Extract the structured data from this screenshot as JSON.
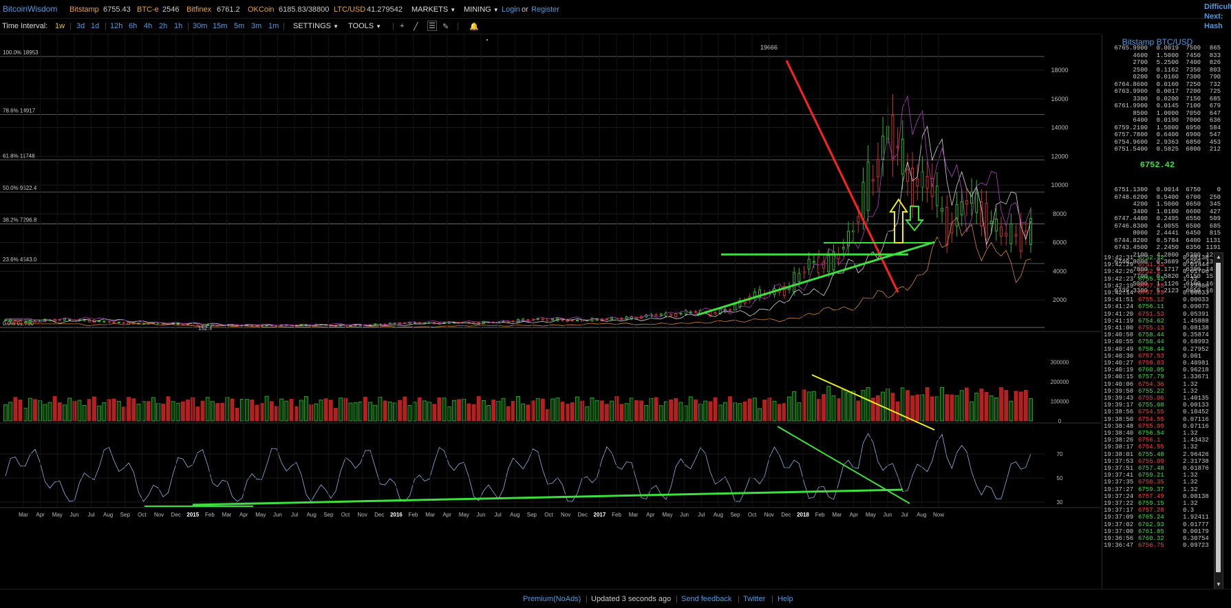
{
  "header": {
    "brand": "BitcoinWisdom",
    "exchanges": [
      {
        "name": "Bitstamp",
        "price": "6755.43"
      },
      {
        "name": "BTC-e",
        "price": "2546"
      },
      {
        "name": "Bitfinex",
        "price": "6761.2"
      },
      {
        "name": "OKCoin",
        "price": "6185.83/38800"
      },
      {
        "name": "LTC/USD",
        "price": "41.279542"
      }
    ],
    "markets_label": "MARKETS",
    "mining_label": "MINING",
    "login_label": "Login",
    "or_label": "or",
    "register_label": "Register",
    "difficulty_lines": [
      "Difficulty",
      "Next:",
      "Hash Rate"
    ]
  },
  "toolbar": {
    "interval_label": "Time Interval:",
    "intervals": [
      "1w",
      "3d",
      "1d",
      "12h",
      "6h",
      "4h",
      "2h",
      "1h",
      "30m",
      "15m",
      "5m",
      "3m",
      "1m"
    ],
    "active_interval": "1w",
    "settings_label": "SETTINGS",
    "tools_label": "TOOLS"
  },
  "chart_data": {
    "type": "candlestick",
    "exchange_pair": "Bitstamp BTC/USD",
    "interval": "1w",
    "price_axis_ticks": [
      2000,
      4000,
      6000,
      8000,
      10000,
      12000,
      14000,
      16000,
      18000
    ],
    "high_label": "19666",
    "low_label": "152.4",
    "fib_levels": [
      {
        "label": "100.0% 18953",
        "value": 18953
      },
      {
        "label": "78.6% 14917",
        "value": 14917
      },
      {
        "label": "61.8% 11748",
        "value": 11748
      },
      {
        "label": "50.0% 9522.4",
        "value": 9522.4
      },
      {
        "label": "38.2% 7296.8",
        "value": 7296.8
      },
      {
        "label": "23.6% 4543.0",
        "value": 4543
      },
      {
        "label": "0.0% 91.790",
        "value": 91.79
      }
    ],
    "volume_axis_ticks": [
      "300000",
      "200000",
      "100000",
      "0"
    ],
    "rsi_axis_ticks": [
      "70",
      "50",
      "30"
    ],
    "time_axis_labels": [
      "Mar",
      "Apr",
      "May",
      "Jun",
      "Jul",
      "Aug",
      "Sep",
      "Oct",
      "Nov",
      "Dec",
      "2015",
      "Feb",
      "Mar",
      "Apr",
      "May",
      "Jun",
      "Jul",
      "Aug",
      "Sep",
      "Oct",
      "Nov",
      "Dec",
      "2016",
      "Feb",
      "Mar",
      "Apr",
      "May",
      "Jun",
      "Jul",
      "Aug",
      "Sep",
      "Oct",
      "Nov",
      "Dec",
      "2017",
      "Feb",
      "Mar",
      "Apr",
      "May",
      "Jun",
      "Jul",
      "Aug",
      "Sep",
      "Oct",
      "Nov",
      "Dec",
      "2018",
      "Feb",
      "Mar",
      "Apr",
      "May",
      "Jun",
      "Jul",
      "Aug",
      "Now"
    ],
    "price_series": [
      [
        "2014-03",
        620
      ],
      [
        "2014-04",
        450
      ],
      [
        "2014-05",
        560
      ],
      [
        "2014-06",
        630
      ],
      [
        "2014-07",
        600
      ],
      [
        "2014-08",
        500
      ],
      [
        "2014-09",
        420
      ],
      [
        "2014-10",
        340
      ],
      [
        "2014-11",
        370
      ],
      [
        "2014-12",
        320
      ],
      [
        "2015-01",
        220
      ],
      [
        "2015-02",
        250
      ],
      [
        "2015-03",
        260
      ],
      [
        "2015-04",
        230
      ],
      [
        "2015-05",
        235
      ],
      [
        "2015-06",
        250
      ],
      [
        "2015-07",
        285
      ],
      [
        "2015-08",
        230
      ],
      [
        "2015-09",
        235
      ],
      [
        "2015-10",
        310
      ],
      [
        "2015-11",
        380
      ],
      [
        "2015-12",
        430
      ],
      [
        "2016-01",
        380
      ],
      [
        "2016-02",
        430
      ],
      [
        "2016-03",
        415
      ],
      [
        "2016-04",
        450
      ],
      [
        "2016-05",
        530
      ],
      [
        "2016-06",
        680
      ],
      [
        "2016-07",
        620
      ],
      [
        "2016-08",
        575
      ],
      [
        "2016-09",
        610
      ],
      [
        "2016-10",
        700
      ],
      [
        "2016-11",
        740
      ],
      [
        "2016-12",
        960
      ],
      [
        "2017-01",
        970
      ],
      [
        "2017-02",
        1190
      ],
      [
        "2017-03",
        1080
      ],
      [
        "2017-04",
        1350
      ],
      [
        "2017-05",
        2300
      ],
      [
        "2017-06",
        2500
      ],
      [
        "2017-07",
        2870
      ],
      [
        "2017-08",
        4700
      ],
      [
        "2017-09",
        4340
      ],
      [
        "2017-10",
        6470
      ],
      [
        "2017-11",
        10000
      ],
      [
        "2017-12",
        14000
      ],
      [
        "2018-01",
        10200
      ],
      [
        "2018-02",
        10300
      ],
      [
        "2018-03",
        6900
      ],
      [
        "2018-04",
        9200
      ],
      [
        "2018-05",
        7500
      ],
      [
        "2018-06",
        6400
      ],
      [
        "2018-07",
        6752
      ]
    ],
    "indicators": [
      "Volume",
      "RSI"
    ]
  },
  "orderbook": {
    "title": "Bitstamp BTC/USD",
    "asks": [
      [
        "6765.9900",
        "0.0019",
        "7500",
        "865"
      ],
      [
        "4600",
        "1.5000",
        "7450",
        "833"
      ],
      [
        "2700",
        "5.2500",
        "7400",
        "826"
      ],
      [
        "2500",
        "0.1162",
        "7350",
        "803"
      ],
      [
        "0200",
        "0.0160",
        "7300",
        "790"
      ],
      [
        "6764.8600",
        "0.0160",
        "7250",
        "732"
      ],
      [
        "6763.9900",
        "0.0017",
        "7200",
        "725"
      ],
      [
        "3300",
        "0.0200",
        "7150",
        "685"
      ],
      [
        "6761.9900",
        "0.0145",
        "7100",
        "679"
      ],
      [
        "8500",
        "1.0000",
        "7050",
        "647"
      ],
      [
        "6400",
        "0.0190",
        "7000",
        "636"
      ],
      [
        "6759.2100",
        "1.5000",
        "6950",
        "584"
      ],
      [
        "6757.7800",
        "0.6400",
        "6900",
        "547"
      ],
      [
        "6754.9600",
        "2.9363",
        "6850",
        "453"
      ],
      [
        "6751.5400",
        "0.5825",
        "6800",
        "212"
      ]
    ],
    "last_price": "6752.42",
    "bids": [
      [
        "6751.1300",
        "0.0014",
        "6750",
        "0"
      ],
      [
        "6748.6200",
        "0.5400",
        "6700",
        "250"
      ],
      [
        "4200",
        "1.5000",
        "6650",
        "345"
      ],
      [
        "3400",
        "1.0100",
        "6600",
        "427"
      ],
      [
        "6747.4400",
        "0.2495",
        "6550",
        "509"
      ],
      [
        "6746.8300",
        "4.0055",
        "6500",
        "685"
      ],
      [
        "8000",
        "2.4441",
        "6450",
        "815"
      ],
      [
        "6744.8200",
        "0.5784",
        "6400",
        "1131"
      ],
      [
        "6743.4500",
        "2.2450",
        "6350",
        "1191"
      ],
      [
        "2100",
        "4.2800",
        "6300",
        "1296"
      ],
      [
        "6740.8000",
        "0.3689",
        "6250",
        "1377"
      ],
      [
        "7800",
        "0.1717",
        "6200",
        "1433"
      ],
      [
        "7700",
        "0.5820",
        "6150",
        "1520"
      ],
      [
        "5000",
        "1.1126",
        "6100",
        "1610"
      ],
      [
        "6739.3300",
        "5.2123",
        "6050",
        "1695"
      ]
    ]
  },
  "trades": [
    [
      "19:42:31",
      "6752.42",
      "0.08138",
      "up"
    ],
    [
      "19:42:29",
      "6751.53",
      "0.01444",
      "down"
    ],
    [
      "19:42:26",
      "6752.1",
      "0.01706",
      "down"
    ],
    [
      "19:42:23",
      "6755.43",
      "1.32",
      "up"
    ],
    [
      "19:42:19",
      "6757.23",
      "1.23986",
      "down"
    ],
    [
      "19:42:14",
      "6757.23",
      "0.00033",
      "down"
    ],
    [
      "19:41:51",
      "6755.12",
      "0.00033",
      "down"
    ],
    [
      "19:41:24",
      "6756.11",
      "0.09073",
      "up"
    ],
    [
      "19:41:20",
      "6751.53",
      "0.05391",
      "down"
    ],
    [
      "19:41:19",
      "6754.62",
      "1.45888",
      "up"
    ],
    [
      "19:41:00",
      "6755.13",
      "0.08138",
      "down"
    ],
    [
      "19:40:58",
      "6758.44",
      "0.35874",
      "up"
    ],
    [
      "19:40:55",
      "6758.44",
      "0.68993",
      "up"
    ],
    [
      "19:40:49",
      "6758.44",
      "0.27952",
      "up"
    ],
    [
      "19:40:30",
      "6757.53",
      "0.001",
      "down"
    ],
    [
      "19:40:27",
      "6758.83",
      "0.40981",
      "down"
    ],
    [
      "19:40:19",
      "6760.05",
      "0.96218",
      "up"
    ],
    [
      "19:40:15",
      "6757.79",
      "1.33671",
      "up"
    ],
    [
      "19:40:06",
      "6754.36",
      "1.32",
      "down"
    ],
    [
      "19:39:58",
      "6755.22",
      "1.32",
      "up"
    ],
    [
      "19:39:43",
      "6755.06",
      "1.40135",
      "down"
    ],
    [
      "19:39:17",
      "6755.08",
      "0.00133",
      "up"
    ],
    [
      "19:38:56",
      "6754.55",
      "0.10452",
      "down"
    ],
    [
      "19:38:50",
      "6754.55",
      "0.07116",
      "down"
    ],
    [
      "19:38:48",
      "6755.09",
      "0.07116",
      "down"
    ],
    [
      "19:38:40",
      "6756.54",
      "1.32",
      "up"
    ],
    [
      "19:38:26",
      "6756.1",
      "1.43432",
      "down"
    ],
    [
      "19:38:17",
      "6754.55",
      "1.32",
      "down"
    ],
    [
      "19:38:01",
      "6755.48",
      "2.96426",
      "up"
    ],
    [
      "19:37:53",
      "6755.09",
      "2.31738",
      "down"
    ],
    [
      "19:37:51",
      "6757.48",
      "0.01876",
      "up"
    ],
    [
      "19:37:41",
      "6759.21",
      "1.32",
      "up"
    ],
    [
      "19:37:35",
      "6758.35",
      "1.32",
      "down"
    ],
    [
      "19:37:27",
      "6759.37",
      "1.32",
      "up"
    ],
    [
      "19:37:24",
      "6757.49",
      "0.00138",
      "down"
    ],
    [
      "19:37:22",
      "6759.15",
      "1.32",
      "up"
    ],
    [
      "19:37:17",
      "6757.28",
      "0.3",
      "down"
    ],
    [
      "19:37:09",
      "6765.24",
      "1.92411",
      "up"
    ],
    [
      "19:37:02",
      "6762.93",
      "0.01777",
      "up"
    ],
    [
      "19:37:00",
      "6761.85",
      "0.00179",
      "up"
    ],
    [
      "19:36:56",
      "6760.32",
      "0.30754",
      "up"
    ],
    [
      "19:36:47",
      "6756.75",
      "0.09723",
      "down"
    ]
  ],
  "footer": {
    "premium_label": "Premium(NoAds)",
    "updated_label": "Updated 3 seconds ago",
    "feedback_label": "Send feedback",
    "twitter_label": "Twitter",
    "help_label": "Help"
  },
  "colors": {
    "background": "#000000",
    "up": "#3ee03e",
    "down": "#ff4040",
    "link": "#4a9de0",
    "exchange_name": "#f0a030",
    "grid": "#2c2c2c"
  }
}
